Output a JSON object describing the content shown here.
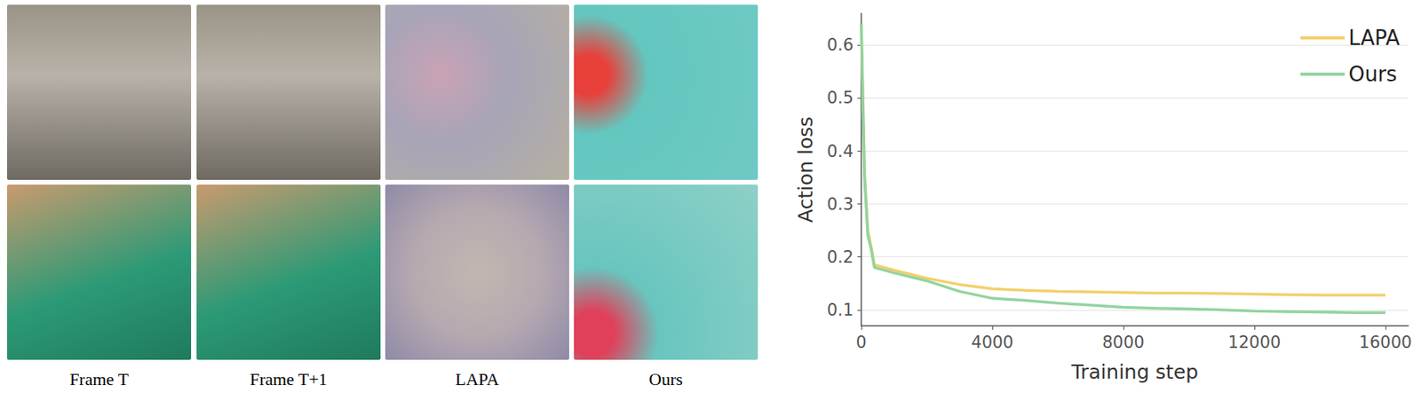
{
  "image_panels": {
    "captions": [
      "Frame T",
      "Frame T+1",
      "LAPA",
      "Ours"
    ]
  },
  "chart_data": {
    "type": "line",
    "x_label": "Training step",
    "y_label": "Action loss",
    "xlim": [
      0,
      16700
    ],
    "xticks": [
      0,
      4000,
      8000,
      12000,
      16000
    ],
    "ylim": [
      0.07,
      0.66
    ],
    "yticks": [
      0.1,
      0.2,
      0.3,
      0.4,
      0.5,
      0.6
    ],
    "grid": true,
    "legend": "upper right",
    "series": [
      {
        "name": "LAPA",
        "color": "#f2d06b",
        "x": [
          0,
          100,
          200,
          300,
          400,
          1000,
          2000,
          3000,
          4000,
          5000,
          6000,
          7000,
          8000,
          9000,
          10000,
          11000,
          12000,
          13000,
          14000,
          15000,
          16000
        ],
        "values": [
          0.64,
          0.36,
          0.25,
          0.22,
          0.185,
          0.175,
          0.16,
          0.148,
          0.14,
          0.137,
          0.135,
          0.134,
          0.133,
          0.132,
          0.132,
          0.131,
          0.13,
          0.129,
          0.128,
          0.128,
          0.128
        ]
      },
      {
        "name": "Ours",
        "color": "#92d4a0",
        "x": [
          0,
          100,
          200,
          300,
          400,
          1000,
          2000,
          3000,
          4000,
          5000,
          6000,
          7000,
          8000,
          9000,
          10000,
          11000,
          12000,
          13000,
          14000,
          15000,
          16000
        ],
        "values": [
          0.64,
          0.35,
          0.24,
          0.215,
          0.18,
          0.17,
          0.155,
          0.135,
          0.122,
          0.118,
          0.113,
          0.109,
          0.105,
          0.103,
          0.102,
          0.1,
          0.098,
          0.097,
          0.096,
          0.095,
          0.095
        ]
      }
    ]
  }
}
